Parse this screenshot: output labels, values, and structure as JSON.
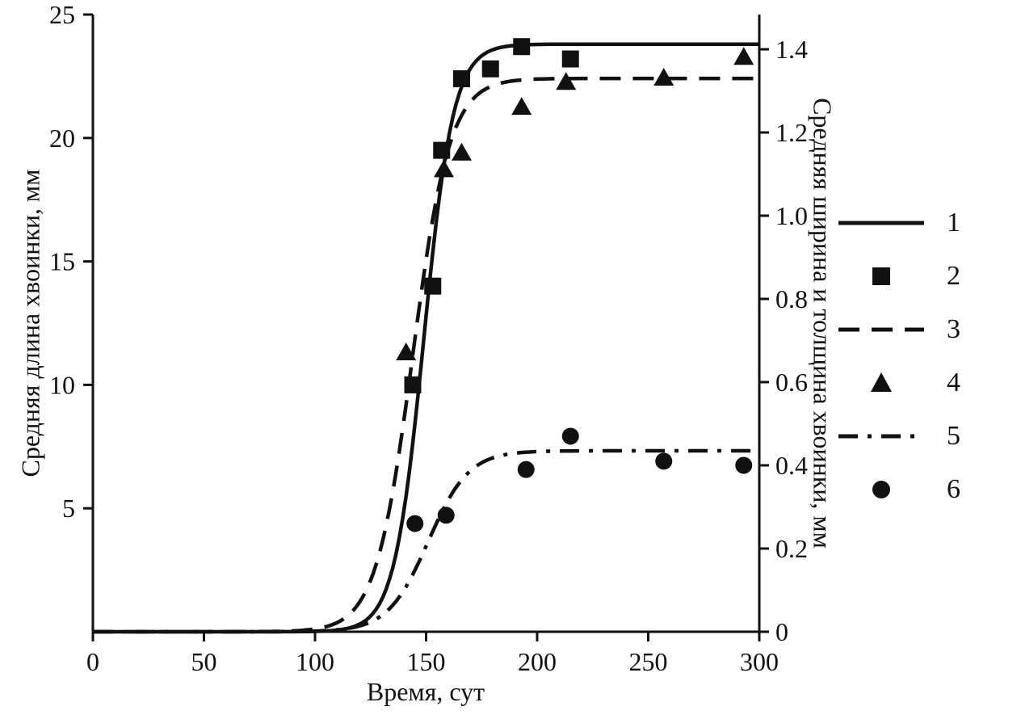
{
  "chart_data": {
    "type": "line",
    "title": "",
    "x_axis": {
      "label": "Время, сут",
      "range": [
        0,
        300
      ],
      "ticks": [
        0,
        50,
        100,
        150,
        200,
        250,
        300
      ]
    },
    "y_left": {
      "label": "Средняя длина хвоинки, мм",
      "range": [
        0,
        25
      ],
      "ticks": [
        5,
        10,
        15,
        20,
        25
      ]
    },
    "y_right": {
      "label": "Средняя ширина и толщина хвоинки, мм",
      "range": [
        0,
        1.4
      ],
      "ticks": [
        0,
        0.2,
        0.4,
        0.6,
        0.8,
        1.0,
        1.2,
        1.4
      ]
    },
    "grid": false,
    "legend_position": "right",
    "series": [
      {
        "name": "1",
        "kind": "sigmoid-line",
        "style": "solid",
        "axis": "left",
        "plateau": 23.8,
        "midpoint": 149,
        "steepness": 0.15
      },
      {
        "name": "2",
        "kind": "markers",
        "marker": "square",
        "axis": "left",
        "points": [
          [
            144,
            10.0
          ],
          [
            153,
            14.0
          ],
          [
            157,
            19.5
          ],
          [
            166,
            22.4
          ],
          [
            179,
            22.8
          ],
          [
            193,
            23.7
          ],
          [
            215,
            23.2
          ]
        ]
      },
      {
        "name": "3",
        "kind": "sigmoid-line",
        "style": "dashed",
        "axis": "right",
        "plateau": 1.33,
        "midpoint": 144,
        "steepness": 0.12
      },
      {
        "name": "4",
        "kind": "markers",
        "marker": "triangle",
        "axis": "right",
        "points": [
          [
            141,
            0.67
          ],
          [
            158,
            1.11
          ],
          [
            166,
            1.15
          ],
          [
            193,
            1.26
          ],
          [
            213,
            1.32
          ],
          [
            257,
            1.33
          ],
          [
            293,
            1.38
          ]
        ]
      },
      {
        "name": "5",
        "kind": "sigmoid-line",
        "style": "dashdot",
        "axis": "right",
        "plateau": 0.435,
        "midpoint": 151,
        "steepness": 0.11
      },
      {
        "name": "6",
        "kind": "markers",
        "marker": "circle",
        "axis": "right",
        "points": [
          [
            145,
            0.26
          ],
          [
            159,
            0.28
          ],
          [
            195,
            0.39
          ],
          [
            215,
            0.47
          ],
          [
            257,
            0.41
          ],
          [
            293,
            0.4
          ]
        ]
      }
    ],
    "legend": {
      "items": [
        {
          "label": "1",
          "symbol": "solid-line"
        },
        {
          "label": "2",
          "symbol": "square"
        },
        {
          "label": "3",
          "symbol": "dashed-line"
        },
        {
          "label": "4",
          "symbol": "triangle"
        },
        {
          "label": "5",
          "symbol": "dashdot-line"
        },
        {
          "label": "6",
          "symbol": "circle"
        }
      ]
    },
    "colors": {
      "ink": "#111111",
      "background": "#ffffff"
    }
  }
}
